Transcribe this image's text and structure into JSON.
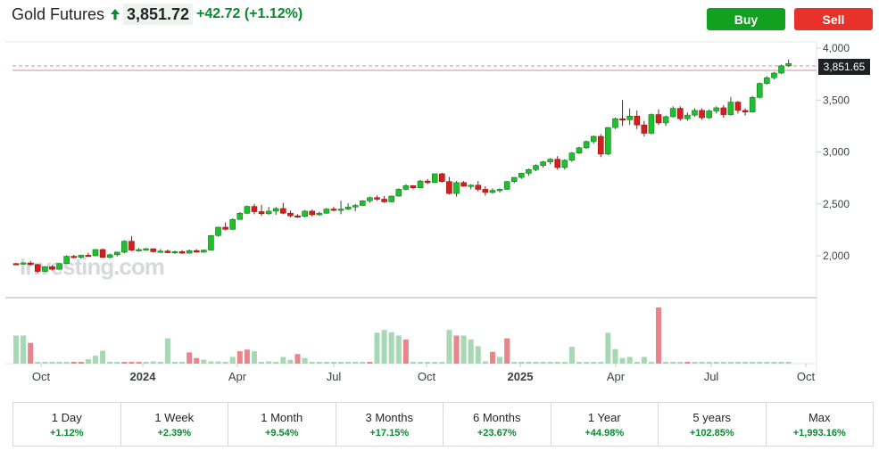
{
  "header": {
    "title": "Gold Futures",
    "price": "3,851.72",
    "change": "+42.72 (+1.12%)",
    "direction_icon": "up-arrow-icon",
    "buy_label": "Buy",
    "sell_label": "Sell",
    "colors": {
      "up": "#0a8a2f",
      "buy": "#11a01f",
      "sell": "#e8312b"
    }
  },
  "chart": {
    "watermark": "Investing.com",
    "price_marker": "3,851.65",
    "price_levels": [
      2000,
      2500,
      3000,
      3500,
      4000
    ],
    "price_level_labels": [
      "2,000",
      "2,500",
      "3,000",
      "3,500",
      "4,000"
    ],
    "time_labels": [
      "Oct",
      "2024",
      "Apr",
      "Jul",
      "Oct",
      "2025",
      "Apr",
      "Jul",
      "Oct"
    ],
    "time_label_bold": [
      false,
      true,
      false,
      false,
      false,
      true,
      false,
      false,
      false
    ],
    "colors": {
      "bull": "#1fbf2e",
      "bear": "#d41f1f",
      "vol_bull": "#a6d8b3",
      "vol_bear": "#e7858b"
    },
    "candles": [
      [
        1925,
        1930,
        1910,
        1920
      ],
      [
        1920,
        1935,
        1915,
        1932
      ],
      [
        1930,
        1950,
        1905,
        1915
      ],
      [
        1915,
        1925,
        1835,
        1850
      ],
      [
        1850,
        1900,
        1845,
        1895
      ],
      [
        1895,
        1910,
        1860,
        1870
      ],
      [
        1870,
        1930,
        1865,
        1925
      ],
      [
        1925,
        2005,
        1920,
        1995
      ],
      [
        1995,
        2010,
        1975,
        1985
      ],
      [
        1985,
        2010,
        1970,
        2005
      ],
      [
        2005,
        2030,
        1990,
        2000
      ],
      [
        2000,
        2065,
        1995,
        2060
      ],
      [
        2060,
        2070,
        1980,
        1985
      ],
      [
        1985,
        2020,
        1975,
        2010
      ],
      [
        2010,
        2040,
        1995,
        2035
      ],
      [
        2035,
        2150,
        2025,
        2140
      ],
      [
        2140,
        2190,
        2045,
        2055
      ],
      [
        2055,
        2075,
        2040,
        2060
      ],
      [
        2060,
        2075,
        2050,
        2068
      ],
      [
        2068,
        2070,
        2030,
        2040
      ],
      [
        2040,
        2065,
        2030,
        2045
      ],
      [
        2045,
        2060,
        2025,
        2030
      ],
      [
        2030,
        2050,
        2020,
        2040
      ],
      [
        2040,
        2055,
        2020,
        2025
      ],
      [
        2025,
        2060,
        2020,
        2050
      ],
      [
        2050,
        2065,
        2030,
        2035
      ],
      [
        2035,
        2060,
        2030,
        2055
      ],
      [
        2055,
        2200,
        2050,
        2195
      ],
      [
        2195,
        2280,
        2185,
        2275
      ],
      [
        2275,
        2320,
        2245,
        2255
      ],
      [
        2255,
        2360,
        2250,
        2350
      ],
      [
        2350,
        2420,
        2345,
        2410
      ],
      [
        2410,
        2485,
        2400,
        2475
      ],
      [
        2475,
        2500,
        2400,
        2425
      ],
      [
        2425,
        2490,
        2385,
        2405
      ],
      [
        2405,
        2470,
        2395,
        2430
      ],
      [
        2430,
        2470,
        2395,
        2455
      ],
      [
        2455,
        2510,
        2400,
        2410
      ],
      [
        2410,
        2435,
        2370,
        2385
      ],
      [
        2385,
        2400,
        2365,
        2380
      ],
      [
        2380,
        2440,
        2370,
        2430
      ],
      [
        2430,
        2445,
        2380,
        2395
      ],
      [
        2395,
        2425,
        2385,
        2410
      ],
      [
        2410,
        2460,
        2405,
        2450
      ],
      [
        2450,
        2470,
        2430,
        2440
      ],
      [
        2440,
        2530,
        2400,
        2450
      ],
      [
        2450,
        2505,
        2440,
        2470
      ],
      [
        2470,
        2500,
        2430,
        2485
      ],
      [
        2485,
        2535,
        2480,
        2530
      ],
      [
        2530,
        2570,
        2510,
        2560
      ],
      [
        2560,
        2580,
        2530,
        2545
      ],
      [
        2545,
        2575,
        2510,
        2520
      ],
      [
        2520,
        2580,
        2515,
        2575
      ],
      [
        2575,
        2650,
        2570,
        2640
      ],
      [
        2640,
        2690,
        2630,
        2675
      ],
      [
        2675,
        2680,
        2640,
        2655
      ],
      [
        2655,
        2730,
        2650,
        2720
      ],
      [
        2720,
        2740,
        2690,
        2705
      ],
      [
        2705,
        2790,
        2700,
        2790
      ],
      [
        2790,
        2800,
        2705,
        2715
      ],
      [
        2715,
        2760,
        2590,
        2600
      ],
      [
        2600,
        2720,
        2570,
        2705
      ],
      [
        2705,
        2720,
        2665,
        2670
      ],
      [
        2670,
        2690,
        2640,
        2680
      ],
      [
        2680,
        2720,
        2620,
        2640
      ],
      [
        2640,
        2670,
        2580,
        2610
      ],
      [
        2610,
        2650,
        2600,
        2630
      ],
      [
        2630,
        2650,
        2610,
        2640
      ],
      [
        2640,
        2720,
        2635,
        2715
      ],
      [
        2715,
        2760,
        2700,
        2755
      ],
      [
        2755,
        2800,
        2740,
        2795
      ],
      [
        2795,
        2840,
        2770,
        2830
      ],
      [
        2830,
        2880,
        2815,
        2870
      ],
      [
        2870,
        2915,
        2850,
        2905
      ],
      [
        2905,
        2940,
        2880,
        2930
      ],
      [
        2930,
        2960,
        2830,
        2850
      ],
      [
        2850,
        2930,
        2830,
        2920
      ],
      [
        2920,
        3000,
        2905,
        2990
      ],
      [
        2990,
        3050,
        2980,
        3040
      ],
      [
        3040,
        3110,
        3030,
        3100
      ],
      [
        3100,
        3160,
        3080,
        3150
      ],
      [
        3150,
        3170,
        2950,
        2980
      ],
      [
        2980,
        3240,
        2970,
        3235
      ],
      [
        3235,
        3330,
        3220,
        3320
      ],
      [
        3320,
        3500,
        3250,
        3310
      ],
      [
        3310,
        3420,
        3260,
        3345
      ],
      [
        3345,
        3400,
        3220,
        3260
      ],
      [
        3260,
        3300,
        3150,
        3180
      ],
      [
        3180,
        3370,
        3170,
        3360
      ],
      [
        3360,
        3410,
        3260,
        3280
      ],
      [
        3280,
        3350,
        3250,
        3340
      ],
      [
        3340,
        3440,
        3330,
        3420
      ],
      [
        3420,
        3440,
        3300,
        3320
      ],
      [
        3320,
        3380,
        3300,
        3355
      ],
      [
        3355,
        3420,
        3340,
        3400
      ],
      [
        3400,
        3420,
        3310,
        3330
      ],
      [
        3330,
        3410,
        3320,
        3395
      ],
      [
        3395,
        3440,
        3370,
        3425
      ],
      [
        3425,
        3450,
        3330,
        3360
      ],
      [
        3360,
        3530,
        3350,
        3480
      ],
      [
        3480,
        3490,
        3370,
        3400
      ],
      [
        3400,
        3420,
        3350,
        3385
      ],
      [
        3385,
        3540,
        3380,
        3525
      ],
      [
        3525,
        3670,
        3515,
        3660
      ],
      [
        3660,
        3730,
        3650,
        3715
      ],
      [
        3715,
        3770,
        3700,
        3760
      ],
      [
        3760,
        3840,
        3750,
        3830
      ],
      [
        3830,
        3890,
        3820,
        3852
      ]
    ],
    "volumes": [
      [
        0.5,
        1
      ],
      [
        0.5,
        1
      ],
      [
        0.37,
        0
      ],
      [
        0.03,
        1
      ],
      [
        0.03,
        1
      ],
      [
        0.03,
        1
      ],
      [
        0.03,
        1
      ],
      [
        0.03,
        1
      ],
      [
        0.03,
        0
      ],
      [
        0.03,
        0
      ],
      [
        0.08,
        1
      ],
      [
        0.14,
        1
      ],
      [
        0.23,
        1
      ],
      [
        0.03,
        1
      ],
      [
        0.03,
        1
      ],
      [
        0.03,
        0
      ],
      [
        0.03,
        0
      ],
      [
        0.03,
        0
      ],
      [
        0.03,
        1
      ],
      [
        0.04,
        1
      ],
      [
        0.03,
        1
      ],
      [
        0.45,
        1
      ],
      [
        0.03,
        1
      ],
      [
        0.02,
        1
      ],
      [
        0.2,
        0
      ],
      [
        0.1,
        0
      ],
      [
        0.07,
        1
      ],
      [
        0.04,
        1
      ],
      [
        0.04,
        1
      ],
      [
        0.03,
        1
      ],
      [
        0.12,
        1
      ],
      [
        0.22,
        0
      ],
      [
        0.25,
        0
      ],
      [
        0.22,
        1
      ],
      [
        0.03,
        1
      ],
      [
        0.04,
        1
      ],
      [
        0.03,
        1
      ],
      [
        0.12,
        1
      ],
      [
        0.07,
        1
      ],
      [
        0.17,
        0
      ],
      [
        0.1,
        1
      ],
      [
        0.03,
        1
      ],
      [
        0.03,
        1
      ],
      [
        0.03,
        1
      ],
      [
        0.03,
        1
      ],
      [
        0.02,
        1
      ],
      [
        0.03,
        1
      ],
      [
        0.03,
        1
      ],
      [
        0.03,
        1
      ],
      [
        0.03,
        0
      ],
      [
        0.55,
        1
      ],
      [
        0.6,
        1
      ],
      [
        0.56,
        1
      ],
      [
        0.5,
        1
      ],
      [
        0.43,
        0
      ],
      [
        0.03,
        1
      ],
      [
        0.03,
        1
      ],
      [
        0.03,
        1
      ],
      [
        0.03,
        1
      ],
      [
        0.03,
        1
      ],
      [
        0.6,
        1
      ],
      [
        0.5,
        0
      ],
      [
        0.5,
        1
      ],
      [
        0.43,
        1
      ],
      [
        0.31,
        1
      ],
      [
        0.04,
        1
      ],
      [
        0.21,
        0
      ],
      [
        0.12,
        1
      ],
      [
        0.45,
        0
      ],
      [
        0.03,
        1
      ],
      [
        0.03,
        1
      ],
      [
        0.03,
        1
      ],
      [
        0.03,
        1
      ],
      [
        0.03,
        1
      ],
      [
        0.03,
        1
      ],
      [
        0.03,
        1
      ],
      [
        0.03,
        1
      ],
      [
        0.3,
        1
      ],
      [
        0.03,
        1
      ],
      [
        0.03,
        1
      ],
      [
        0.03,
        1
      ],
      [
        0.02,
        1
      ],
      [
        0.55,
        1
      ],
      [
        0.26,
        1
      ],
      [
        0.1,
        1
      ],
      [
        0.12,
        1
      ],
      [
        0.03,
        1
      ],
      [
        0.12,
        1
      ],
      [
        0.03,
        1
      ],
      [
        1.0,
        0
      ],
      [
        0.03,
        1
      ],
      [
        0.03,
        1
      ],
      [
        0.03,
        1
      ],
      [
        0.03,
        0
      ],
      [
        0.03,
        1
      ],
      [
        0.03,
        1
      ],
      [
        0.03,
        1
      ],
      [
        0.03,
        1
      ],
      [
        0.03,
        1
      ],
      [
        0.03,
        1
      ],
      [
        0.03,
        1
      ],
      [
        0.03,
        1
      ],
      [
        0.03,
        1
      ],
      [
        0.03,
        1
      ],
      [
        0.03,
        1
      ],
      [
        0.03,
        1
      ],
      [
        0.03,
        1
      ],
      [
        0.03,
        1
      ]
    ]
  },
  "periods": [
    {
      "label": "1 Day",
      "change": "+1.12%"
    },
    {
      "label": "1 Week",
      "change": "+2.39%"
    },
    {
      "label": "1 Month",
      "change": "+9.54%"
    },
    {
      "label": "3 Months",
      "change": "+17.15%"
    },
    {
      "label": "6 Months",
      "change": "+23.67%"
    },
    {
      "label": "1 Year",
      "change": "+44.98%"
    },
    {
      "label": "5 years",
      "change": "+102.85%"
    },
    {
      "label": "Max",
      "change": "+1,993.16%"
    }
  ]
}
